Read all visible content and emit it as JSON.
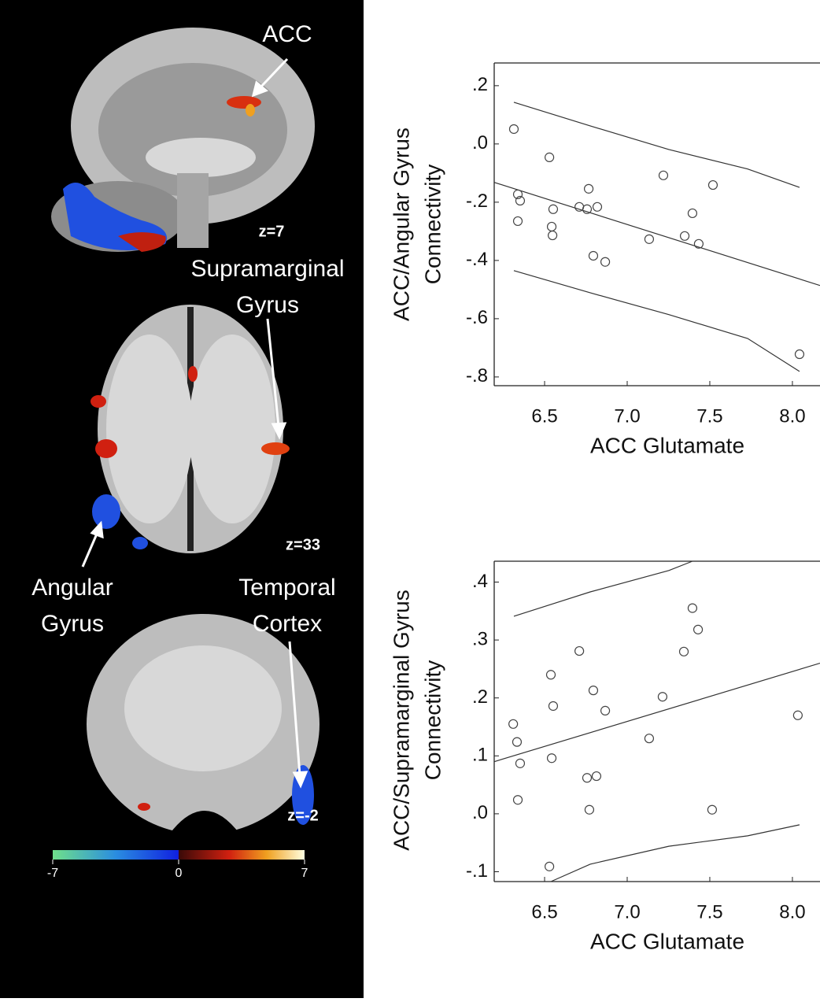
{
  "chart_data": [
    {
      "type": "scatter",
      "xlabel": "ACC Glutamate",
      "ylabel": [
        "ACC/Angular  Gyrus",
        "Connectivity"
      ],
      "color": "#444",
      "x": [
        6.314,
        6.529,
        6.338,
        6.352,
        6.338,
        6.552,
        6.543,
        6.548,
        6.767,
        6.71,
        6.757,
        6.819,
        6.795,
        6.867,
        7.133,
        7.219,
        7.348,
        7.395,
        7.433,
        7.519,
        8.043
      ],
      "values": [
        0.051,
        -0.046,
        -0.173,
        -0.195,
        -0.265,
        -0.224,
        -0.284,
        -0.314,
        -0.154,
        -0.216,
        -0.224,
        -0.216,
        -0.384,
        -0.405,
        -0.327,
        -0.108,
        -0.316,
        -0.238,
        -0.343,
        -0.141,
        -0.722
      ],
      "fit": {
        "x": [
          6.195,
          8.167
        ],
        "y": [
          -0.132,
          -0.486
        ]
      },
      "band_upper": {
        "x": [
          6.314,
          6.776,
          7.252,
          7.729,
          8.043
        ],
        "y": [
          0.143,
          0.062,
          -0.019,
          -0.086,
          -0.149
        ]
      },
      "band_lower": {
        "x": [
          6.314,
          6.776,
          7.252,
          7.729,
          8.043
        ],
        "y": [
          -0.435,
          -0.511,
          -0.586,
          -0.668,
          -0.781
        ]
      },
      "xlim": [
        6.195,
        8.167
      ],
      "ylim": [
        -0.83,
        0.278
      ],
      "xticks": [
        6.5,
        {
          "value": 7,
          "label": "7.0"
        },
        7.5,
        {
          "value": 8,
          "label": "8.0"
        }
      ],
      "yticks": [
        {
          "value": 0.2,
          "label": ".2"
        },
        {
          "value": 0,
          "label": ".0"
        },
        {
          "value": -0.2,
          "label": "-.2"
        },
        {
          "value": -0.4,
          "label": "-.4"
        },
        {
          "value": -0.6,
          "label": "-.6"
        },
        {
          "value": -0.8,
          "label": "-.8"
        }
      ]
    },
    {
      "type": "scatter",
      "xlabel": "ACC Glutamate",
      "ylabel": [
        "ACC/Supramarginal Gyrus",
        "Connectivity"
      ],
      "color": "#444",
      "x": [
        6.31,
        6.333,
        6.352,
        6.338,
        6.529,
        6.538,
        6.552,
        6.543,
        6.71,
        6.757,
        6.795,
        6.814,
        6.771,
        6.867,
        7.133,
        7.214,
        7.343,
        7.395,
        7.429,
        7.514,
        8.033
      ],
      "values": [
        0.155,
        0.124,
        0.087,
        0.024,
        -0.091,
        0.24,
        0.186,
        0.096,
        0.281,
        0.062,
        0.213,
        0.065,
        0.007,
        0.178,
        0.13,
        0.202,
        0.28,
        0.355,
        0.318,
        0.007,
        0.17
      ],
      "fit": {
        "x": [
          6.195,
          8.167
        ],
        "y": [
          0.09,
          0.26
        ]
      },
      "band_upper": {
        "x": [
          6.314,
          6.776,
          7.252,
          7.395
        ],
        "y": [
          0.341,
          0.383,
          0.42,
          0.436
        ]
      },
      "band_lower": {
        "x": [
          6.538,
          6.776,
          7.252,
          7.729,
          8.043
        ],
        "y": [
          -0.117,
          -0.087,
          -0.056,
          -0.038,
          -0.019
        ]
      },
      "xlim": [
        6.195,
        8.167
      ],
      "ylim": [
        -0.117,
        0.436
      ],
      "xticks": [
        6.5,
        {
          "value": 7,
          "label": "7.0"
        },
        7.5,
        {
          "value": 8,
          "label": "8.0"
        }
      ],
      "yticks": [
        {
          "value": 0.4,
          "label": ".4"
        },
        {
          "value": 0.3,
          "label": ".3"
        },
        {
          "value": 0.2,
          "label": ".2"
        },
        {
          "value": 0.1,
          "label": ".1"
        },
        {
          "value": 0,
          "label": ".0"
        },
        {
          "value": -0.1,
          "label": "-.1"
        }
      ]
    }
  ],
  "brain_panel": {
    "region_labels": [
      [
        "ACC"
      ],
      [
        "Supramarginal",
        "Gyrus"
      ],
      [
        "Angular",
        "Gyrus"
      ],
      [
        "Temporal",
        "Cortex"
      ]
    ],
    "slice_labels": [
      "z=7",
      "z=33",
      "z=-2"
    ],
    "colorbar": {
      "ticks": [
        -7,
        0,
        7
      ]
    }
  }
}
